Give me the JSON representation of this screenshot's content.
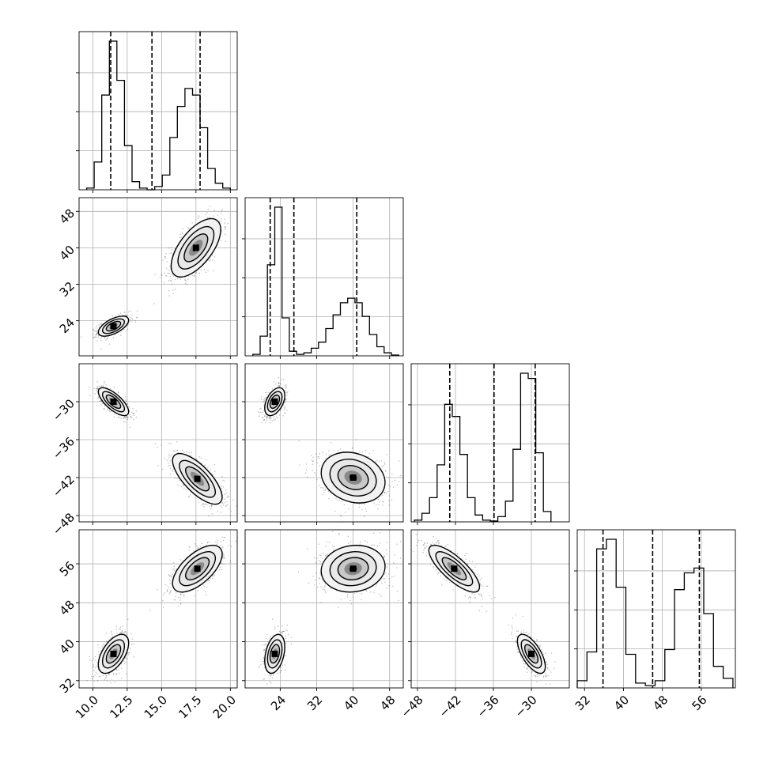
{
  "chart_data": {
    "type": "corner",
    "parameters": [
      {
        "range": [
          9,
          20.5
        ],
        "ticks": [
          10.0,
          12.5,
          15.0,
          17.5,
          20.0
        ],
        "tick_labels": [
          "10.0",
          "12.5",
          "15.0",
          "17.5",
          "20.0"
        ],
        "quantiles": [
          11.3,
          14.3,
          17.8
        ],
        "hist": {
          "edges": [
            9.55,
            10.1,
            10.65,
            11.2,
            11.75,
            12.3,
            12.85,
            13.4,
            13.95,
            14.5,
            15.05,
            15.6,
            16.15,
            16.7,
            17.25,
            17.8,
            18.35,
            18.9,
            19.45,
            20.0
          ],
          "counts": [
            0.01,
            0.17,
            0.58,
            0.91,
            0.67,
            0.27,
            0.05,
            0.01,
            0,
            0.02,
            0.09,
            0.32,
            0.51,
            0.62,
            0.58,
            0.38,
            0.13,
            0.04,
            0.01
          ]
        }
      },
      {
        "range": [
          16.3,
          51
        ],
        "ticks": [
          24,
          32,
          40,
          48
        ],
        "tick_labels": [
          "24",
          "32",
          "40",
          "48"
        ],
        "quantiles": [
          21.8,
          27.0,
          40.8
        ],
        "hist": {
          "edges": [
            18.0,
            19.6,
            21.2,
            22.8,
            24.4,
            26.0,
            27.6,
            29.2,
            30.8,
            32.4,
            34.0,
            35.6,
            37.2,
            38.8,
            40.4,
            42.0,
            43.6,
            45.2,
            46.8,
            48.4,
            50.0
          ],
          "counts": [
            0.01,
            0.13,
            0.6,
            0.98,
            0.25,
            0.03,
            0.01,
            0.02,
            0.05,
            0.09,
            0.18,
            0.27,
            0.35,
            0.38,
            0.35,
            0.26,
            0.14,
            0.06,
            0.02,
            0.005
          ]
        }
      },
      {
        "range": [
          -49,
          -24
        ],
        "ticks": [
          -48,
          -42,
          -36,
          -30
        ],
        "tick_labels": [
          "−48",
          "−42",
          "−36",
          "−30"
        ],
        "quantiles": [
          -42.9,
          -35.9,
          -29.4
        ],
        "hist": {
          "edges": [
            -48.5,
            -47.3,
            -46.1,
            -44.9,
            -43.7,
            -42.5,
            -41.3,
            -40.1,
            -38.9,
            -37.7,
            -36.5,
            -35.3,
            -34.1,
            -32.9,
            -31.7,
            -30.5,
            -29.3,
            -28.1,
            -26.9
          ],
          "counts": [
            0.01,
            0.05,
            0.14,
            0.33,
            0.68,
            0.61,
            0.39,
            0.14,
            0.04,
            0.01,
            0.005,
            0.03,
            0.12,
            0.42,
            0.86,
            0.83,
            0.4,
            0.06
          ]
        }
      },
      {
        "range": [
          30.5,
          63
        ],
        "ticks": [
          32,
          40,
          48,
          56
        ],
        "tick_labels": [
          "32",
          "40",
          "48",
          "56"
        ],
        "quantiles": [
          35.8,
          46.0,
          55.6
        ],
        "hist": {
          "edges": [
            30.5,
            32.5,
            34.5,
            36.5,
            38.5,
            40.5,
            42.5,
            44.5,
            46.5,
            48.5,
            50.5,
            52.5,
            54.5,
            56.5,
            58.5,
            60.5,
            62.5
          ],
          "counts": [
            0.03,
            0.15,
            0.58,
            0.62,
            0.42,
            0.14,
            0.02,
            0.01,
            0.03,
            0.16,
            0.41,
            0.48,
            0.5,
            0.31,
            0.09,
            0.04
          ]
        }
      }
    ],
    "pairs": [
      {
        "x": 0,
        "y": 1,
        "clusters": [
          {
            "mx": 11.5,
            "my": 22.8,
            "sx": 0.55,
            "sy": 1.1,
            "r": 0.6,
            "n": 650
          },
          {
            "mx": 17.5,
            "my": 40.0,
            "sx": 0.9,
            "sy": 3.2,
            "r": 0.62,
            "n": 750
          }
        ]
      },
      {
        "x": 0,
        "y": 2,
        "clusters": [
          {
            "mx": 11.5,
            "my": -30.0,
            "sx": 0.55,
            "sy": 1.1,
            "r": -0.72,
            "n": 650
          },
          {
            "mx": 17.6,
            "my": -42.2,
            "sx": 0.9,
            "sy": 2.0,
            "r": -0.72,
            "n": 750
          }
        ]
      },
      {
        "x": 0,
        "y": 3,
        "clusters": [
          {
            "mx": 11.5,
            "my": 37.5,
            "sx": 0.55,
            "sy": 2.0,
            "r": 0.55,
            "n": 650
          },
          {
            "mx": 17.6,
            "my": 55.0,
            "sx": 0.9,
            "sy": 2.4,
            "r": 0.62,
            "n": 750
          }
        ]
      },
      {
        "x": 1,
        "y": 2,
        "clusters": [
          {
            "mx": 22.8,
            "my": -30.0,
            "sx": 1.1,
            "sy": 1.1,
            "r": 0.45,
            "n": 650
          },
          {
            "mx": 40.0,
            "my": -42.0,
            "sx": 3.5,
            "sy": 2.0,
            "r": -0.2,
            "n": 750
          }
        ]
      },
      {
        "x": 1,
        "y": 3,
        "clusters": [
          {
            "mx": 22.8,
            "my": 37.5,
            "sx": 1.1,
            "sy": 2.0,
            "r": 0.35,
            "n": 650
          },
          {
            "mx": 40.0,
            "my": 55.0,
            "sx": 3.5,
            "sy": 2.4,
            "r": 0.1,
            "n": 750
          }
        ]
      },
      {
        "x": 2,
        "y": 3,
        "clusters": [
          {
            "mx": -42.2,
            "my": 55.0,
            "sx": 2.0,
            "sy": 2.4,
            "r": -0.78,
            "n": 750
          },
          {
            "mx": -30.0,
            "my": 37.5,
            "sx": 1.1,
            "sy": 2.0,
            "r": -0.65,
            "n": 650
          }
        ]
      }
    ],
    "grid": true,
    "line_color": "#000000",
    "point_color": "#444444",
    "fill_dark": "#000000",
    "fill_light": "#f2f2f2"
  }
}
